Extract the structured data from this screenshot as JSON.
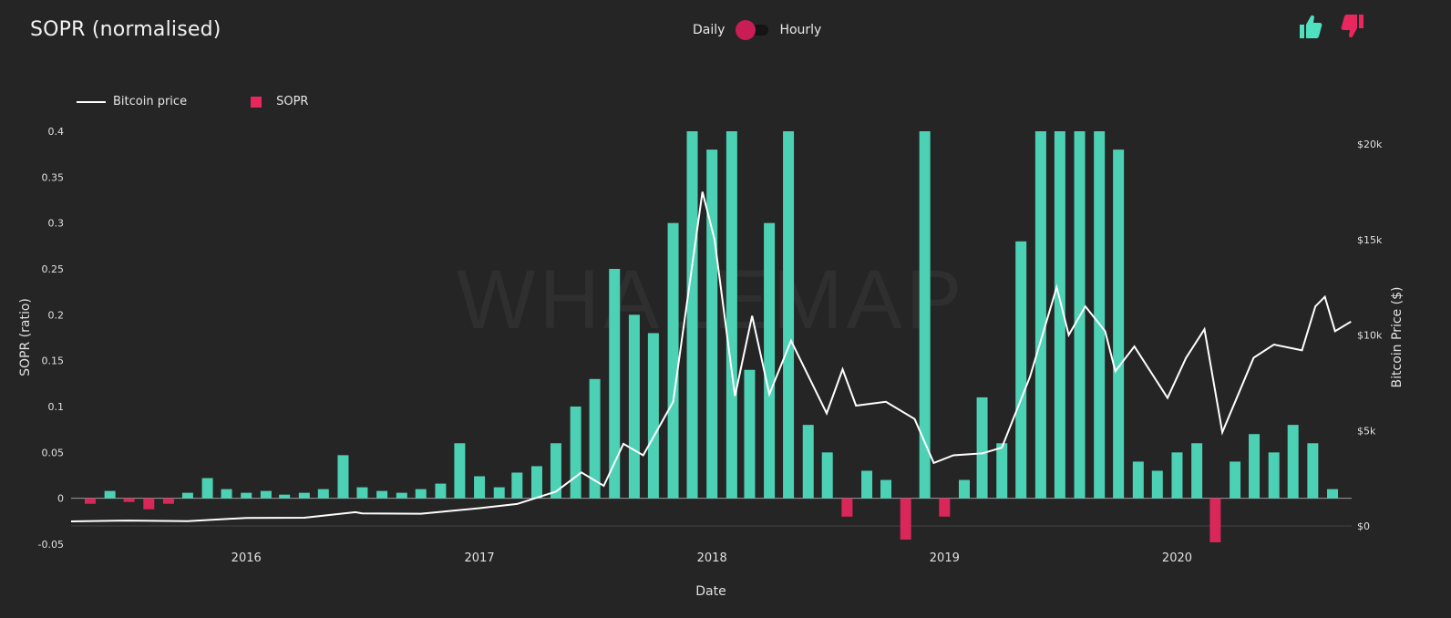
{
  "header": {
    "title": "SOPR (normalised)",
    "toggle_left": "Daily",
    "toggle_right": "Hourly",
    "toggle_state": "Daily"
  },
  "icons": {
    "thumbs_up": "thumbs-up-icon",
    "thumbs_down": "thumbs-down-icon"
  },
  "colors": {
    "background": "#252525",
    "positive": "#4fe0c0",
    "negative": "#e8275e",
    "price": "#ffffff",
    "toggle_knob": "#c81d55",
    "thumbs_up": "#4fe0c0",
    "thumbs_down": "#e8275e"
  },
  "watermark": "WHALEMAP",
  "chart_data": {
    "type": "bar",
    "x_axis": {
      "label": "Date",
      "ticks": [
        "2016",
        "2017",
        "2018",
        "2019",
        "2020"
      ],
      "range": [
        "2015-04-01",
        "2020-10-01"
      ]
    },
    "y_left": {
      "label": "SOPR (ratio)",
      "ticks": [
        "0.4",
        "0.35",
        "0.3",
        "0.25",
        "0.2",
        "0.15",
        "0.1",
        "0.05",
        "0",
        "-0.05"
      ],
      "range": [
        -0.05,
        0.4
      ]
    },
    "y_right": {
      "label": "Bitcoin Price ($)",
      "ticks": [
        "$20k",
        "$15k",
        "$10k",
        "$5k",
        "$0"
      ],
      "range": [
        0,
        20000
      ]
    },
    "legend": {
      "position": "top-left",
      "entries": [
        "Bitcoin price",
        "SOPR"
      ]
    },
    "grid": false,
    "series": [
      {
        "name": "SOPR",
        "type": "bar",
        "points": [
          [
            "2015-05-01",
            -0.006
          ],
          [
            "2015-06-01",
            0.008
          ],
          [
            "2015-07-01",
            -0.004
          ],
          [
            "2015-08-01",
            -0.012
          ],
          [
            "2015-09-01",
            -0.006
          ],
          [
            "2015-10-01",
            0.006
          ],
          [
            "2015-11-01",
            0.022
          ],
          [
            "2015-12-01",
            0.01
          ],
          [
            "2016-01-01",
            0.006
          ],
          [
            "2016-02-01",
            0.008
          ],
          [
            "2016-03-01",
            0.004
          ],
          [
            "2016-04-01",
            0.006
          ],
          [
            "2016-05-01",
            0.01
          ],
          [
            "2016-06-01",
            0.047
          ],
          [
            "2016-07-01",
            0.012
          ],
          [
            "2016-08-01",
            0.008
          ],
          [
            "2016-09-01",
            0.006
          ],
          [
            "2016-10-01",
            0.01
          ],
          [
            "2016-11-01",
            0.016
          ],
          [
            "2016-12-01",
            0.06
          ],
          [
            "2017-01-01",
            0.024
          ],
          [
            "2017-02-01",
            0.012
          ],
          [
            "2017-03-01",
            0.028
          ],
          [
            "2017-04-01",
            0.035
          ],
          [
            "2017-05-01",
            0.06
          ],
          [
            "2017-06-01",
            0.1
          ],
          [
            "2017-07-01",
            0.13
          ],
          [
            "2017-08-01",
            0.25
          ],
          [
            "2017-09-01",
            0.2
          ],
          [
            "2017-10-01",
            0.18
          ],
          [
            "2017-11-01",
            0.3
          ],
          [
            "2017-12-01",
            0.4
          ],
          [
            "2018-01-01",
            0.38
          ],
          [
            "2018-02-01",
            0.4
          ],
          [
            "2018-03-01",
            0.14
          ],
          [
            "2018-04-01",
            0.3
          ],
          [
            "2018-05-01",
            0.4
          ],
          [
            "2018-06-01",
            0.08
          ],
          [
            "2018-07-01",
            0.05
          ],
          [
            "2018-08-01",
            -0.02
          ],
          [
            "2018-09-01",
            0.03
          ],
          [
            "2018-10-01",
            0.02
          ],
          [
            "2018-11-01",
            -0.045
          ],
          [
            "2018-12-01",
            0.4
          ],
          [
            "2019-01-01",
            -0.02
          ],
          [
            "2019-02-01",
            0.02
          ],
          [
            "2019-03-01",
            0.11
          ],
          [
            "2019-04-01",
            0.06
          ],
          [
            "2019-05-01",
            0.28
          ],
          [
            "2019-06-01",
            0.4
          ],
          [
            "2019-07-01",
            0.4
          ],
          [
            "2019-08-01",
            0.4
          ],
          [
            "2019-09-01",
            0.4
          ],
          [
            "2019-10-01",
            0.38
          ],
          [
            "2019-11-01",
            0.04
          ],
          [
            "2019-12-01",
            0.03
          ],
          [
            "2020-01-01",
            0.05
          ],
          [
            "2020-02-01",
            0.06
          ],
          [
            "2020-03-01",
            -0.048
          ],
          [
            "2020-04-01",
            0.04
          ],
          [
            "2020-05-01",
            0.07
          ],
          [
            "2020-06-01",
            0.05
          ],
          [
            "2020-07-01",
            0.08
          ],
          [
            "2020-08-01",
            0.06
          ],
          [
            "2020-09-01",
            0.01
          ]
        ]
      },
      {
        "name": "Bitcoin price",
        "type": "line",
        "points": [
          [
            "2015-04-01",
            240
          ],
          [
            "2015-07-01",
            280
          ],
          [
            "2015-10-01",
            250
          ],
          [
            "2016-01-01",
            420
          ],
          [
            "2016-04-01",
            430
          ],
          [
            "2016-06-20",
            720
          ],
          [
            "2016-07-01",
            660
          ],
          [
            "2016-10-01",
            640
          ],
          [
            "2017-01-01",
            930
          ],
          [
            "2017-03-01",
            1150
          ],
          [
            "2017-05-01",
            1800
          ],
          [
            "2017-06-10",
            2800
          ],
          [
            "2017-07-15",
            2100
          ],
          [
            "2017-08-15",
            4300
          ],
          [
            "2017-09-15",
            3700
          ],
          [
            "2017-11-01",
            6500
          ],
          [
            "2017-12-17",
            17500
          ],
          [
            "2018-01-05",
            15000
          ],
          [
            "2018-02-06",
            6800
          ],
          [
            "2018-03-05",
            11000
          ],
          [
            "2018-04-01",
            6900
          ],
          [
            "2018-05-05",
            9700
          ],
          [
            "2018-06-30",
            5900
          ],
          [
            "2018-07-25",
            8200
          ],
          [
            "2018-08-15",
            6300
          ],
          [
            "2018-10-01",
            6500
          ],
          [
            "2018-11-15",
            5600
          ],
          [
            "2018-12-15",
            3300
          ],
          [
            "2019-01-15",
            3700
          ],
          [
            "2019-03-01",
            3800
          ],
          [
            "2019-04-01",
            4100
          ],
          [
            "2019-05-15",
            7800
          ],
          [
            "2019-06-26",
            12500
          ],
          [
            "2019-07-15",
            10000
          ],
          [
            "2019-08-10",
            11500
          ],
          [
            "2019-09-10",
            10200
          ],
          [
            "2019-09-26",
            8100
          ],
          [
            "2019-10-26",
            9400
          ],
          [
            "2019-12-17",
            6700
          ],
          [
            "2020-01-15",
            8800
          ],
          [
            "2020-02-13",
            10300
          ],
          [
            "2020-03-12",
            4900
          ],
          [
            "2020-04-30",
            8800
          ],
          [
            "2020-06-01",
            9500
          ],
          [
            "2020-07-15",
            9200
          ],
          [
            "2020-08-05",
            11500
          ],
          [
            "2020-08-20",
            12000
          ],
          [
            "2020-09-05",
            10200
          ],
          [
            "2020-09-30",
            10700
          ]
        ]
      }
    ]
  }
}
